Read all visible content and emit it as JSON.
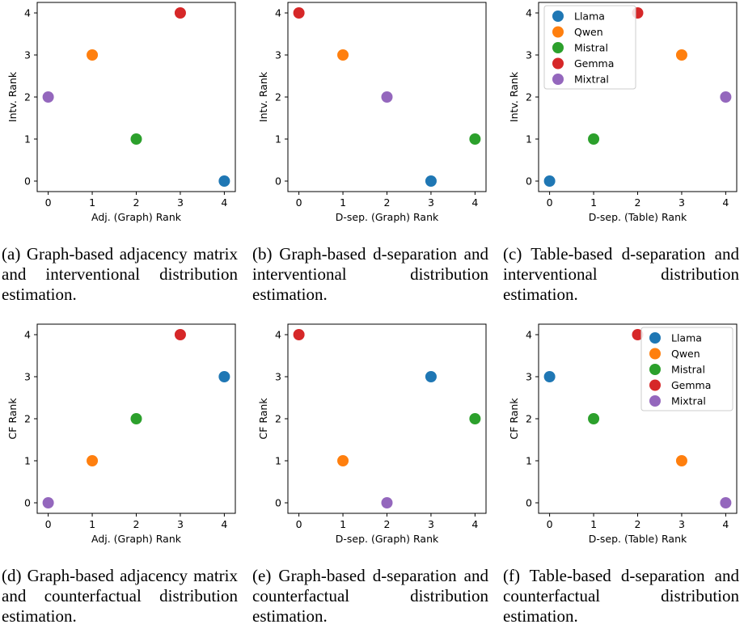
{
  "series_names": [
    "Llama",
    "Qwen",
    "Mistral",
    "Gemma",
    "Mixtral"
  ],
  "colors": {
    "Llama": "#1f77b4",
    "Qwen": "#ff7f0e",
    "Mistral": "#2ca02c",
    "Gemma": "#d62728",
    "Mixtral": "#9467bd"
  },
  "captions": [
    "(a) Graph-based adjacency matrix and interventional distribution estimation.",
    "(b) Graph-based d-separation and interventional distribution estimation.",
    "(c) Table-based d-separation and interventional distribution estimation.",
    "(d) Graph-based adjacency matrix and counterfactual distribution estimation.",
    "(e) Graph-based d-separation and counterfactual distribution estimation.",
    "(f) Table-based d-separation and counterfactual distribution estimation."
  ],
  "chart_data": [
    {
      "type": "scatter",
      "title": "",
      "xlabel": "Adj. (Graph) Rank",
      "ylabel": "Intv. Rank",
      "xlim": [
        0,
        4
      ],
      "ylim": [
        0,
        4
      ],
      "xticks": [
        "0",
        "1",
        "2",
        "3",
        "4"
      ],
      "yticks": [
        "0",
        "1",
        "2",
        "3",
        "4"
      ],
      "legend": false,
      "grid": false,
      "series": [
        {
          "name": "Llama",
          "x": 4,
          "y": 0
        },
        {
          "name": "Qwen",
          "x": 1,
          "y": 3
        },
        {
          "name": "Mistral",
          "x": 2,
          "y": 1
        },
        {
          "name": "Gemma",
          "x": 3,
          "y": 4
        },
        {
          "name": "Mixtral",
          "x": 0,
          "y": 2
        }
      ]
    },
    {
      "type": "scatter",
      "title": "",
      "xlabel": "D-sep. (Graph) Rank",
      "ylabel": "Intv. Rank",
      "xlim": [
        0,
        4
      ],
      "ylim": [
        0,
        4
      ],
      "xticks": [
        "0",
        "1",
        "2",
        "3",
        "4"
      ],
      "yticks": [
        "0",
        "1",
        "2",
        "3",
        "4"
      ],
      "legend": false,
      "grid": false,
      "series": [
        {
          "name": "Llama",
          "x": 3,
          "y": 0
        },
        {
          "name": "Qwen",
          "x": 1,
          "y": 3
        },
        {
          "name": "Mistral",
          "x": 4,
          "y": 1
        },
        {
          "name": "Gemma",
          "x": 0,
          "y": 4
        },
        {
          "name": "Mixtral",
          "x": 2,
          "y": 2
        }
      ]
    },
    {
      "type": "scatter",
      "title": "",
      "xlabel": "D-sep. (Table) Rank",
      "ylabel": "Intv. Rank",
      "xlim": [
        0,
        4
      ],
      "ylim": [
        0,
        4
      ],
      "xticks": [
        "0",
        "1",
        "2",
        "3",
        "4"
      ],
      "yticks": [
        "0",
        "1",
        "2",
        "3",
        "4"
      ],
      "legend": "top-left",
      "grid": false,
      "series": [
        {
          "name": "Llama",
          "x": 0,
          "y": 0
        },
        {
          "name": "Qwen",
          "x": 3,
          "y": 3
        },
        {
          "name": "Mistral",
          "x": 1,
          "y": 1
        },
        {
          "name": "Gemma",
          "x": 2,
          "y": 4
        },
        {
          "name": "Mixtral",
          "x": 4,
          "y": 2
        }
      ]
    },
    {
      "type": "scatter",
      "title": "",
      "xlabel": "Adj. (Graph) Rank",
      "ylabel": "CF Rank",
      "xlim": [
        0,
        4
      ],
      "ylim": [
        0,
        4
      ],
      "xticks": [
        "0",
        "1",
        "2",
        "3",
        "4"
      ],
      "yticks": [
        "0",
        "1",
        "2",
        "3",
        "4"
      ],
      "legend": false,
      "grid": false,
      "series": [
        {
          "name": "Llama",
          "x": 4,
          "y": 3
        },
        {
          "name": "Qwen",
          "x": 1,
          "y": 1
        },
        {
          "name": "Mistral",
          "x": 2,
          "y": 2
        },
        {
          "name": "Gemma",
          "x": 3,
          "y": 4
        },
        {
          "name": "Mixtral",
          "x": 0,
          "y": 0
        }
      ]
    },
    {
      "type": "scatter",
      "title": "",
      "xlabel": "D-sep. (Graph) Rank",
      "ylabel": "CF Rank",
      "xlim": [
        0,
        4
      ],
      "ylim": [
        0,
        4
      ],
      "xticks": [
        "0",
        "1",
        "2",
        "3",
        "4"
      ],
      "yticks": [
        "0",
        "1",
        "2",
        "3",
        "4"
      ],
      "legend": false,
      "grid": false,
      "series": [
        {
          "name": "Llama",
          "x": 3,
          "y": 3
        },
        {
          "name": "Qwen",
          "x": 1,
          "y": 1
        },
        {
          "name": "Mistral",
          "x": 4,
          "y": 2
        },
        {
          "name": "Gemma",
          "x": 0,
          "y": 4
        },
        {
          "name": "Mixtral",
          "x": 2,
          "y": 0
        }
      ]
    },
    {
      "type": "scatter",
      "title": "",
      "xlabel": "D-sep. (Table) Rank",
      "ylabel": "CF Rank",
      "xlim": [
        0,
        4
      ],
      "ylim": [
        0,
        4
      ],
      "xticks": [
        "0",
        "1",
        "2",
        "3",
        "4"
      ],
      "yticks": [
        "0",
        "1",
        "2",
        "3",
        "4"
      ],
      "legend": "top-right",
      "grid": false,
      "series": [
        {
          "name": "Llama",
          "x": 0,
          "y": 3
        },
        {
          "name": "Qwen",
          "x": 3,
          "y": 1
        },
        {
          "name": "Mistral",
          "x": 1,
          "y": 2
        },
        {
          "name": "Gemma",
          "x": 2,
          "y": 4
        },
        {
          "name": "Mixtral",
          "x": 4,
          "y": 0
        }
      ]
    }
  ]
}
